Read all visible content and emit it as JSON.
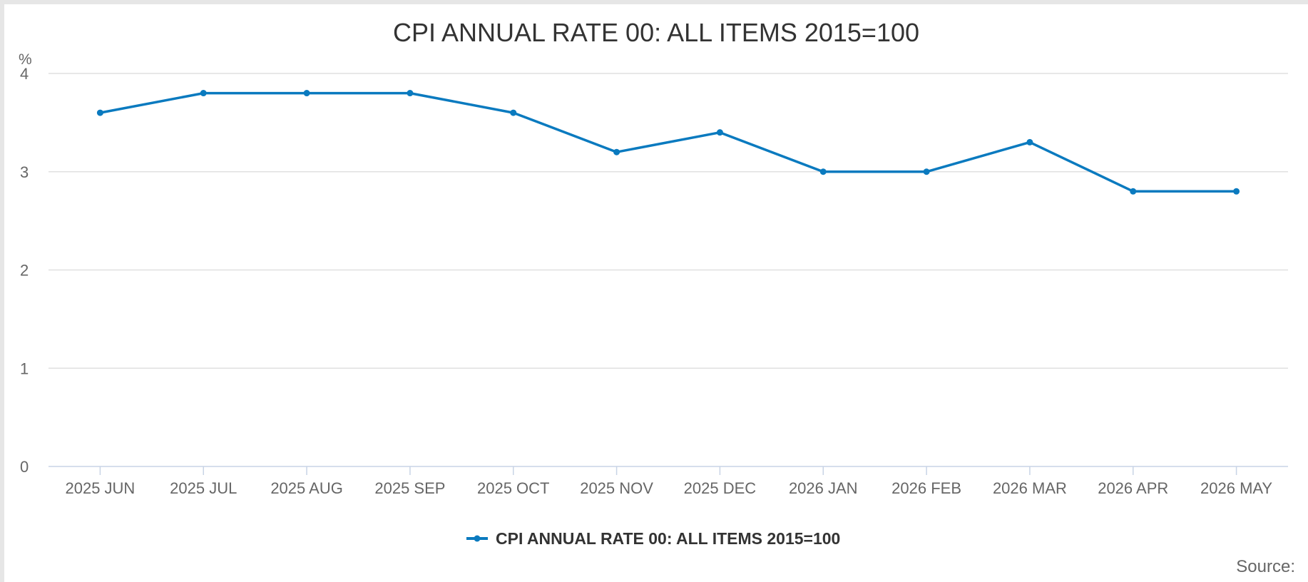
{
  "chart_data": {
    "type": "line",
    "title": "CPI ANNUAL RATE 00: ALL ITEMS 2015=100",
    "ylabel": "%",
    "xlabel": "",
    "categories": [
      "2025 JUN",
      "2025 JUL",
      "2025 AUG",
      "2025 SEP",
      "2025 OCT",
      "2025 NOV",
      "2025 DEC",
      "2026 JAN",
      "2026 FEB",
      "2026 MAR",
      "2026 APR",
      "2026 MAY"
    ],
    "series": [
      {
        "name": "CPI ANNUAL RATE 00: ALL ITEMS 2015=100",
        "values": [
          3.6,
          3.8,
          3.8,
          3.8,
          3.6,
          3.2,
          3.4,
          3.0,
          3.0,
          3.3,
          2.8,
          2.8
        ],
        "color": "#0a7abf"
      }
    ],
    "ylim": [
      0,
      4
    ],
    "yticks": [
      0,
      1,
      2,
      3,
      4
    ],
    "grid": true,
    "legend": "bottom-center"
  },
  "footer": {
    "source_label": "Source:"
  }
}
